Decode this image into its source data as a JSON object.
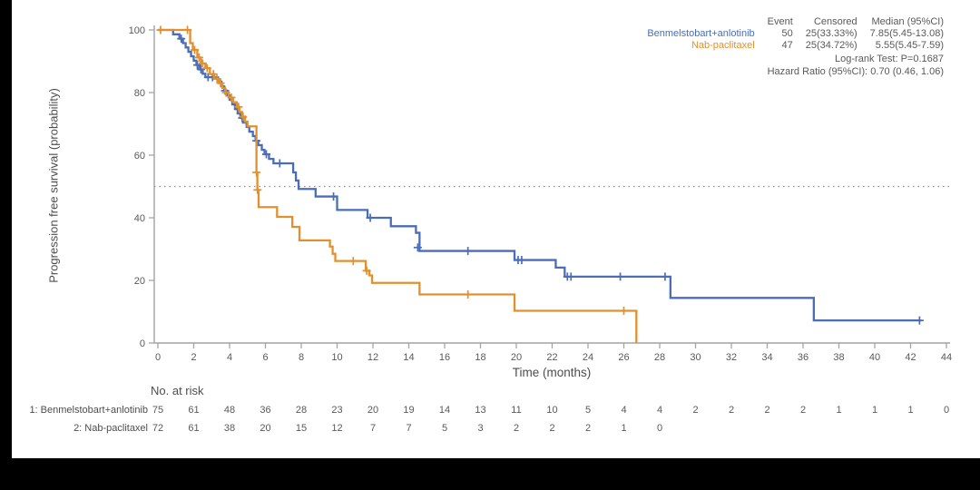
{
  "canvas": {
    "background": "#ffffff",
    "letterbox_color": "#000000"
  },
  "legend": {
    "headers": [
      "Event",
      "Censored",
      "Median (95%CI)"
    ],
    "rows": [
      {
        "name": "Benmelstobart+anlotinib",
        "event": "50",
        "censored": "25(33.33%)",
        "median": "7.85(5.45-13.08)",
        "color": "#4a6db8"
      },
      {
        "name": "Nab-paclitaxel",
        "event": "47",
        "censored": "25(34.72%)",
        "median": "5.55(5.45-7.59)",
        "color": "#e2902e"
      }
    ],
    "stats": [
      "Log-rank Test: P=0.1687",
      "Hazard Ratio (95%CI): 0.70 (0.46, 1.06)"
    ]
  },
  "chart_data": {
    "type": "line",
    "subtype": "kaplan-meier-step",
    "title": "",
    "xlabel": "Time (months)",
    "ylabel": "Progression free survival (probability)",
    "xlim": [
      0,
      44
    ],
    "ylim": [
      0,
      100
    ],
    "xticks": [
      0,
      2,
      4,
      6,
      8,
      10,
      12,
      14,
      16,
      18,
      20,
      22,
      24,
      26,
      28,
      30,
      32,
      34,
      36,
      38,
      40,
      42,
      44
    ],
    "yticks": [
      0,
      20,
      40,
      60,
      80,
      100
    ],
    "reference_line_y": 50,
    "grid": false,
    "axis_color": "#a3a3a3",
    "tick_text_color": "#595959",
    "series": [
      {
        "name": "Benmelstobart+anlotinib",
        "color": "#4a6db8",
        "start_value": 100,
        "end_time": 42.6,
        "steps": [
          [
            0.85,
            98.6
          ],
          [
            1.2,
            97.2
          ],
          [
            1.4,
            95.8
          ],
          [
            1.55,
            94.4
          ],
          [
            1.7,
            93
          ],
          [
            1.85,
            91.6
          ],
          [
            2,
            90.2
          ],
          [
            2.15,
            88.8
          ],
          [
            2.3,
            87.4
          ],
          [
            2.5,
            86
          ],
          [
            2.65,
            84.9
          ],
          [
            3.35,
            83.5
          ],
          [
            3.55,
            82
          ],
          [
            3.7,
            80.6
          ],
          [
            3.85,
            79.1
          ],
          [
            4,
            77.7
          ],
          [
            4.15,
            76.2
          ],
          [
            4.3,
            74.7
          ],
          [
            4.45,
            73.3
          ],
          [
            4.6,
            71.9
          ],
          [
            4.75,
            70.4
          ],
          [
            4.95,
            69
          ],
          [
            5.1,
            67.5
          ],
          [
            5.3,
            66.1
          ],
          [
            5.45,
            64.6
          ],
          [
            5.6,
            63.2
          ],
          [
            5.8,
            61.7
          ],
          [
            5.95,
            60.3
          ],
          [
            6.2,
            58.8
          ],
          [
            6.45,
            57.4
          ],
          [
            7.55,
            54.5
          ],
          [
            7.7,
            51.9
          ],
          [
            7.85,
            49.2
          ],
          [
            8.8,
            46.8
          ],
          [
            10,
            42.5
          ],
          [
            11.7,
            40
          ],
          [
            13,
            37.3
          ],
          [
            14.4,
            35.2
          ],
          [
            14.6,
            29.4
          ],
          [
            19.9,
            26.5
          ],
          [
            22.2,
            24.1
          ],
          [
            22.7,
            21.2
          ],
          [
            28.6,
            14.4
          ],
          [
            36.6,
            7.2
          ]
        ],
        "censors": [
          [
            1.3,
            97.2
          ],
          [
            2.2,
            88.8
          ],
          [
            2.4,
            87.4
          ],
          [
            2.8,
            84.9
          ],
          [
            3.05,
            84.9
          ],
          [
            3.75,
            80.6
          ],
          [
            4.7,
            71.9
          ],
          [
            5.5,
            64.6
          ],
          [
            6.05,
            60.3
          ],
          [
            6.8,
            57.4
          ],
          [
            9.8,
            46.8
          ],
          [
            11.85,
            40
          ],
          [
            14.5,
            30.5
          ],
          [
            17.3,
            29.4
          ],
          [
            20.1,
            26.5
          ],
          [
            20.3,
            26.5
          ],
          [
            22.85,
            21.2
          ],
          [
            23.05,
            21.2
          ],
          [
            25.8,
            21.2
          ],
          [
            28.3,
            21.2
          ],
          [
            42.5,
            7.2
          ]
        ]
      },
      {
        "name": "Nab-paclitaxel",
        "color": "#e2902e",
        "start_value": 100,
        "end_time": 26.7,
        "steps": [
          [
            1.8,
            95.8
          ],
          [
            1.95,
            93.6
          ],
          [
            2.2,
            91.2
          ],
          [
            2.4,
            89.3
          ],
          [
            2.65,
            87.8
          ],
          [
            2.9,
            85.9
          ],
          [
            3.15,
            84.4
          ],
          [
            3.4,
            83
          ],
          [
            3.6,
            81.5
          ],
          [
            3.75,
            80
          ],
          [
            3.95,
            78.4
          ],
          [
            4.2,
            76.9
          ],
          [
            4.4,
            75.4
          ],
          [
            4.55,
            73.8
          ],
          [
            4.7,
            72.3
          ],
          [
            4.85,
            70.7
          ],
          [
            5,
            69.2
          ],
          [
            5.5,
            54.5
          ],
          [
            5.55,
            48.9
          ],
          [
            5.62,
            43.4
          ],
          [
            6.65,
            40.3
          ],
          [
            7.5,
            37.1
          ],
          [
            7.9,
            32.8
          ],
          [
            9.6,
            30.8
          ],
          [
            9.75,
            28.5
          ],
          [
            9.9,
            26.2
          ],
          [
            11.6,
            23.1
          ],
          [
            11.8,
            21.6
          ],
          [
            11.95,
            19.2
          ],
          [
            14.6,
            15.5
          ],
          [
            19.9,
            10.3
          ],
          [
            26.7,
            0
          ]
        ],
        "censors": [
          [
            0.15,
            100
          ],
          [
            1.65,
            100
          ],
          [
            2.05,
            93.6
          ],
          [
            2.3,
            91.2
          ],
          [
            2.5,
            89.3
          ],
          [
            2.75,
            87.8
          ],
          [
            3.1,
            85.9
          ],
          [
            3.3,
            84.4
          ],
          [
            3.5,
            83
          ],
          [
            3.8,
            80
          ],
          [
            4.1,
            78.4
          ],
          [
            4.5,
            75.4
          ],
          [
            4.75,
            72.3
          ],
          [
            5.5,
            54.5
          ],
          [
            5.56,
            48.9
          ],
          [
            10.9,
            26.2
          ],
          [
            11.65,
            23.1
          ],
          [
            17.3,
            15.5
          ],
          [
            26,
            10.3
          ]
        ]
      }
    ],
    "risk_table": {
      "title": "No. at risk",
      "times": [
        0,
        2,
        4,
        6,
        8,
        10,
        12,
        14,
        16,
        18,
        20,
        22,
        24,
        26,
        28,
        30,
        32,
        34,
        36,
        38,
        40,
        42,
        44
      ],
      "rows": [
        {
          "label": "1: Benmelstobart+anlotinib",
          "counts": [
            75,
            61,
            48,
            36,
            28,
            23,
            20,
            19,
            14,
            13,
            11,
            10,
            5,
            4,
            4,
            2,
            2,
            2,
            2,
            1,
            1,
            1,
            0
          ]
        },
        {
          "label": "2: Nab-paclitaxel",
          "counts": [
            72,
            61,
            38,
            20,
            15,
            12,
            7,
            7,
            5,
            3,
            2,
            2,
            2,
            1,
            0
          ]
        }
      ]
    }
  }
}
